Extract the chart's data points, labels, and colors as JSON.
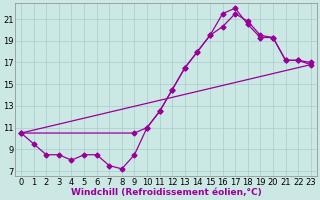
{
  "xlabel": "Windchill (Refroidissement éolien,°C)",
  "background_color": "#cce8e4",
  "grid_color": "#aacccc",
  "line_color": "#990099",
  "xlim": [
    -0.5,
    23.5
  ],
  "ylim": [
    6.5,
    22.5
  ],
  "yticks": [
    7,
    9,
    11,
    13,
    15,
    17,
    19,
    21
  ],
  "xticks": [
    0,
    1,
    2,
    3,
    4,
    5,
    6,
    7,
    8,
    9,
    10,
    11,
    12,
    13,
    14,
    15,
    16,
    17,
    18,
    19,
    20,
    21,
    22,
    23
  ],
  "line1_x": [
    0,
    1,
    2,
    3,
    4,
    5,
    6,
    7,
    8,
    9,
    10,
    11,
    12,
    13,
    14,
    15,
    16,
    17,
    18,
    19,
    20,
    21,
    22,
    23
  ],
  "line1_y": [
    10.5,
    9.5,
    8.5,
    8.5,
    8.0,
    8.5,
    8.5,
    7.5,
    7.2,
    8.5,
    11.0,
    12.5,
    14.5,
    16.5,
    18.0,
    19.5,
    20.3,
    21.5,
    20.8,
    19.5,
    19.3,
    17.2,
    17.2,
    17.0
  ],
  "line2_x": [
    0,
    9,
    10,
    11,
    12,
    13,
    14,
    15,
    16,
    17,
    18,
    19,
    20,
    21,
    22,
    23
  ],
  "line2_y": [
    10.5,
    10.5,
    11.0,
    12.5,
    14.5,
    16.5,
    18.0,
    19.5,
    21.5,
    22.0,
    20.5,
    19.3,
    19.3,
    17.2,
    17.2,
    16.8
  ],
  "line3_x": [
    0,
    23
  ],
  "line3_y": [
    10.5,
    16.8
  ],
  "marker_size": 2.5,
  "linewidth": 0.9,
  "font_size_label": 6.5,
  "font_size_tick": 6.0
}
